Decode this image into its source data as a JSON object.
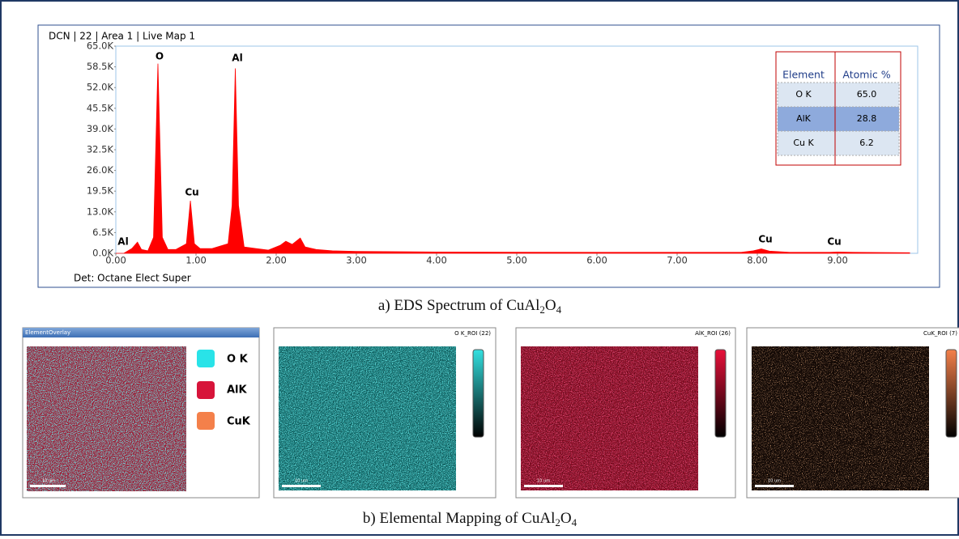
{
  "chart_data": {
    "type": "area",
    "title": "DCN | 22 | Area 1 | Live Map 1",
    "footer": "Det: Octane Elect Super",
    "color": "#ff0000",
    "x": [
      0,
      0.1,
      0.2,
      0.27,
      0.32,
      0.4,
      0.47,
      0.525,
      0.58,
      0.65,
      0.75,
      0.88,
      0.93,
      0.98,
      1.05,
      1.2,
      1.4,
      1.45,
      1.49,
      1.53,
      1.6,
      1.75,
      1.9,
      2.05,
      2.12,
      2.2,
      2.3,
      2.36,
      2.5,
      2.7,
      3,
      4,
      5,
      6,
      7,
      7.8,
      7.95,
      8.05,
      8.15,
      8.4,
      8.9,
      9,
      9.2,
      9.9
    ],
    "values": [
      0,
      0,
      1500,
      3500,
      1200,
      800,
      5000,
      59500,
      5000,
      1200,
      1200,
      3000,
      16500,
      3000,
      1500,
      1500,
      3000,
      15000,
      58000,
      15000,
      2000,
      1500,
      1000,
      2500,
      3800,
      2800,
      4800,
      2000,
      1200,
      800,
      600,
      400,
      350,
      300,
      300,
      300,
      800,
      1400,
      700,
      300,
      300,
      400,
      300,
      200
    ],
    "xlim": [
      0,
      10
    ],
    "ylim": [
      0,
      65000
    ],
    "xticks": [
      {
        "value": 0,
        "label": "0.00"
      },
      {
        "value": 1,
        "label": "1.00"
      },
      {
        "value": 2,
        "label": "2.00"
      },
      {
        "value": 3,
        "label": "3.00"
      },
      {
        "value": 4,
        "label": "4.00"
      },
      {
        "value": 5,
        "label": "5.00"
      },
      {
        "value": 6,
        "label": "6.00"
      },
      {
        "value": 7,
        "label": "7.00"
      },
      {
        "value": 8,
        "label": "8.00"
      },
      {
        "value": 9,
        "label": "9.00"
      }
    ],
    "yticks": [
      {
        "value": 0,
        "label": "0.0K"
      },
      {
        "value": 6500,
        "label": "6.5K"
      },
      {
        "value": 13000,
        "label": "13.0K"
      },
      {
        "value": 19500,
        "label": "19.5K"
      },
      {
        "value": 26000,
        "label": "26.0K"
      },
      {
        "value": 32500,
        "label": "32.5K"
      },
      {
        "value": 39000,
        "label": "39.0K"
      },
      {
        "value": 45500,
        "label": "45.5K"
      },
      {
        "value": 52000,
        "label": "52.0K"
      },
      {
        "value": 58500,
        "label": "58.5K"
      },
      {
        "value": 65000,
        "label": "65.0K"
      }
    ],
    "annotations": [
      "O",
      "Al",
      "Cu",
      "Al",
      "Cu",
      "Cu"
    ],
    "table": {
      "header": [
        "Element",
        "Atomic %"
      ],
      "rows": [
        [
          "O K",
          "65.0"
        ],
        [
          "AlK",
          "28.8"
        ],
        [
          "Cu K",
          "6.2"
        ]
      ]
    }
  },
  "caption_a": [
    "a) EDS Spectrum of CuAl",
    "2",
    "O",
    "4"
  ],
  "caption_b": [
    "b) Elemental Mapping  of CuAl",
    "2",
    "O",
    "4"
  ],
  "mapping": {
    "overlay_title": "ElementOverlay",
    "legend": [
      "O K",
      "AlK",
      "CuK"
    ],
    "scale_label": "10 um",
    "panels": [
      "O K_ROI (22)",
      "AlK_ROI (26)",
      "CuK_ROI (7)"
    ]
  }
}
